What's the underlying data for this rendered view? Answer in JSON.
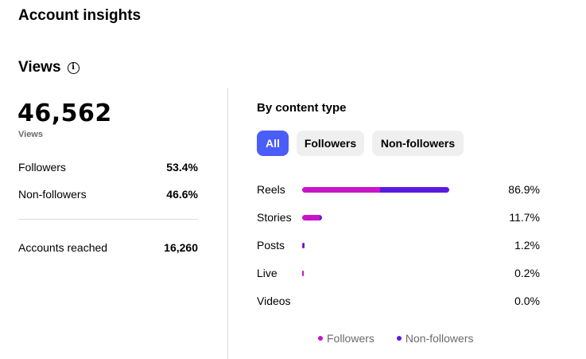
{
  "page_title": "Account insights",
  "views": {
    "title": "Views",
    "total": "46,562",
    "caption": "Views",
    "rows": [
      {
        "label": "Followers",
        "value": "53.4%"
      },
      {
        "label": "Non-followers",
        "value": "46.6%"
      }
    ],
    "reached": {
      "label": "Accounts reached",
      "value": "16,260"
    }
  },
  "content_type": {
    "title": "By content type",
    "filters": [
      {
        "label": "All",
        "active": true
      },
      {
        "label": "Followers",
        "active": false
      },
      {
        "label": "Non-followers",
        "active": false
      }
    ],
    "rows": [
      {
        "label": "Reels",
        "percent": "86.9%",
        "share": 0.869,
        "followers_share": 0.53
      },
      {
        "label": "Stories",
        "percent": "11.7%",
        "share": 0.117,
        "followers_share": 0.9
      },
      {
        "label": "Posts",
        "percent": "1.2%",
        "share": 0.012,
        "followers_share": 0.2
      },
      {
        "label": "Live",
        "percent": "0.2%",
        "share": 0.002,
        "followers_share": 1.0
      },
      {
        "label": "Videos",
        "percent": "0.0%",
        "share": 0.0,
        "followers_share": 0.0
      }
    ],
    "legend": [
      {
        "label": "Followers",
        "color": "#c913c9"
      },
      {
        "label": "Non-followers",
        "color": "#5a1be0"
      }
    ]
  }
}
